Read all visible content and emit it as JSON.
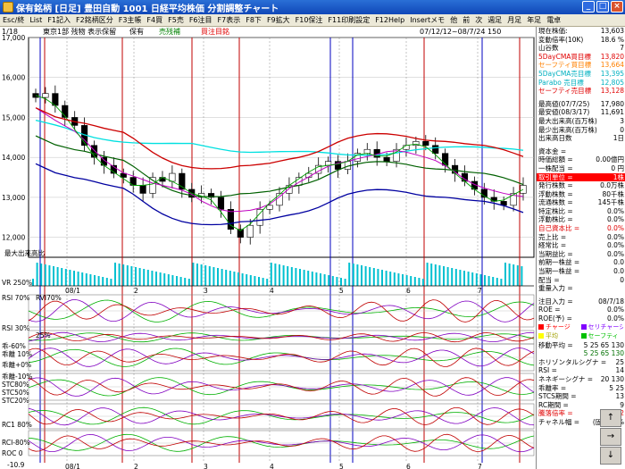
{
  "window": {
    "title": "保有銘柄 [日足] 豊田自動 1001 日経平均株価 分割調整チャート",
    "minimize": "_",
    "maximize": "□",
    "close": "×"
  },
  "menu": [
    "Esc/終",
    "List",
    "F1記入",
    "F2銘柄区分",
    "F3主帳",
    "F4買",
    "F5売",
    "F6注目",
    "F7表示",
    "F8下",
    "F9拡大",
    "F10保注",
    "F11印刷設定",
    "F12Help",
    "Insertメモ",
    "他",
    "前",
    "次",
    "週足",
    "月足",
    "年足",
    "電卓"
  ],
  "chart": {
    "header_left": "1/18",
    "header_mid": "東京1部 残物 表示保留",
    "header_hold": "保有",
    "header_sell": "売残補",
    "header_buy": "買注目銘",
    "header_right": "07/12/12~08/7/24 150",
    "price_ticks": [
      "17,000",
      "16,000",
      "15,000",
      "14,000",
      "13,000",
      "12,000"
    ],
    "price_values": [
      17000,
      16000,
      15000,
      14000,
      13000,
      12000
    ],
    "volume_label": "最大出来高比",
    "vr_label": "VR 250%",
    "rsi_label": "RSI 70%",
    "rsi30_label": "RSI 30%",
    "rsi70_right": "RVI70%",
    "pct25": "25%",
    "dev_label": "乖-60%",
    "dev2_label": "乖離 10%",
    "dev3_label": "乖離+0%",
    "dev4_label": "乖離-10%",
    "stc1": "STC80%",
    "stc2": "STC50%",
    "stc3": "STC20%",
    "rc_label": "RC1 80%",
    "rci_label": "RCI-80%",
    "roc_label": "ROC 0",
    "bottom_value": "-10.9",
    "month_labels": [
      "08/1",
      "2",
      "3",
      "4",
      "5",
      "6",
      "7"
    ],
    "top_month_labels": [
      "08/1",
      "2",
      "3",
      "4",
      "5",
      "6",
      "7"
    ]
  },
  "chart_data": {
    "type": "line",
    "title": "日経平均株価",
    "x_range": [
      "07/12/12",
      "08/7/24"
    ],
    "ylim": [
      11500,
      17000
    ],
    "series": [
      {
        "name": "5DayCMA買目標",
        "color": "#ff0000"
      },
      {
        "name": "セーフティ買目標",
        "color": "#ff8000"
      },
      {
        "name": "5DayCMA売目標",
        "color": "#00b0c0"
      },
      {
        "name": "Parabolic売目標",
        "color": "#00c0c0"
      },
      {
        "name": "セーフティ売目標",
        "color": "#ff0000"
      }
    ],
    "approx_close": [
      15500,
      15600,
      15300,
      15000,
      14800,
      14300,
      14000,
      13800,
      13600,
      13500,
      13300,
      13100,
      13500,
      13400,
      13600,
      13200,
      13000,
      13100,
      13000,
      12700,
      12200,
      12000,
      12300,
      12700,
      12800,
      13100,
      13300,
      13500,
      13600,
      13800,
      13900,
      13700,
      13900,
      14100,
      14200,
      14000,
      13900,
      14200,
      14300,
      14400,
      14300,
      14100,
      13800,
      13600,
      13400,
      13200,
      13000,
      12900,
      12800,
      13100,
      13300
    ]
  },
  "panel": {
    "rows": [
      {
        "label": "現在株価:",
        "value": "13,603",
        "cls": ""
      },
      {
        "label": "変動倍率(10K)",
        "value": "18.6 %",
        "cls": ""
      },
      {
        "label": "山谷数",
        "value": "7",
        "cls": ""
      },
      {
        "label": "5DayCMA買目標",
        "value": "13,820",
        "cls": "red"
      },
      {
        "label": "セーフティ買目標",
        "value": "13,664",
        "cls": "orange"
      },
      {
        "label": "5DayCMA売目標",
        "value": "13,395",
        "cls": "cyan"
      },
      {
        "label": "Parabo 売目標",
        "value": "12,805",
        "cls": "cyan"
      },
      {
        "label": "セーフティ売目標",
        "value": "13,128",
        "cls": "red"
      }
    ],
    "rows2": [
      {
        "label": "最高値(07/7/25)",
        "value": "17,980",
        "cls": ""
      },
      {
        "label": "最安値(08/3/17)",
        "value": "11,691",
        "cls": ""
      },
      {
        "label": "最大出来高(百万株)",
        "value": "3",
        "cls": ""
      },
      {
        "label": "最少出来高(百万株)",
        "value": "0",
        "cls": ""
      },
      {
        "label": "出来高日数",
        "value": "1日",
        "cls": ""
      }
    ],
    "rows3": [
      {
        "label": "資本金 =",
        "value": "",
        "cls": ""
      },
      {
        "label": "時価総額 =",
        "value": "0.00億円",
        "cls": ""
      },
      {
        "label": "一株配当 =",
        "value": "0 円",
        "cls": ""
      },
      {
        "label": "取引単位 =",
        "value": "1株",
        "cls": "hl"
      },
      {
        "label": "発行株数 =",
        "value": "0.0万株",
        "cls": ""
      },
      {
        "label": "浮動株数 =",
        "value": "80千株",
        "cls": ""
      },
      {
        "label": "流通株数 =",
        "value": "145千株",
        "cls": ""
      },
      {
        "label": "特定株比 =",
        "value": "0.0%",
        "cls": ""
      },
      {
        "label": "浮動株比 =",
        "value": "0.0%",
        "cls": ""
      },
      {
        "label": "自己資本比 =",
        "value": "0.0%",
        "cls": "red"
      },
      {
        "label": "売上比 =",
        "value": "0.0%",
        "cls": ""
      },
      {
        "label": "経常比 =",
        "value": "0.0%",
        "cls": ""
      },
      {
        "label": "当期益比 =",
        "value": "0.0%",
        "cls": ""
      },
      {
        "label": "前期一株益 =",
        "value": "0.0",
        "cls": ""
      },
      {
        "label": "当期一株益 =",
        "value": "0.0",
        "cls": ""
      },
      {
        "label": "配当 =",
        "value": "0",
        "cls": ""
      },
      {
        "label": "重量入力 =",
        "value": "",
        "cls": ""
      }
    ],
    "rows4": [
      {
        "label": "注目入力 =",
        "value": "08/7/18",
        "cls": ""
      },
      {
        "label": "ROE =",
        "value": "0.0%",
        "cls": ""
      },
      {
        "label": "ROE(予) =",
        "value": "0.0%",
        "cls": ""
      }
    ],
    "legend": [
      {
        "label": "チャージ",
        "color": "#ff0000"
      },
      {
        "label": "セリチャージ",
        "color": "#8000ff"
      },
      {
        "label": "平均",
        "color": "#ffff00"
      },
      {
        "label": "セーフティ",
        "color": "#00c000"
      }
    ],
    "rows5": [
      {
        "label": "移動平均 =",
        "value": "5 25 65 130",
        "cls": ""
      },
      {
        "label": "",
        "value": "5 25 65 130",
        "cls": "darkgreen"
      },
      {
        "label": "ホリゾンタルシグナ =",
        "value": "25",
        "cls": ""
      },
      {
        "label": "RSI =",
        "value": "14",
        "cls": ""
      },
      {
        "label": "ネネギーシグナ =",
        "value": "20 130",
        "cls": ""
      },
      {
        "label": "乖離率 =",
        "value": "5 25",
        "cls": ""
      },
      {
        "label": "STCS期間 =",
        "value": "13",
        "cls": ""
      },
      {
        "label": "RC期間 =",
        "value": "9",
        "cls": ""
      },
      {
        "label": "騰落倍率 =",
        "value": "5 72",
        "cls": "red"
      },
      {
        "label": "チャネル幅 =",
        "value": "(固定) 5%",
        "cls": ""
      }
    ]
  },
  "pad": [
    "↑",
    "→",
    "↓"
  ]
}
